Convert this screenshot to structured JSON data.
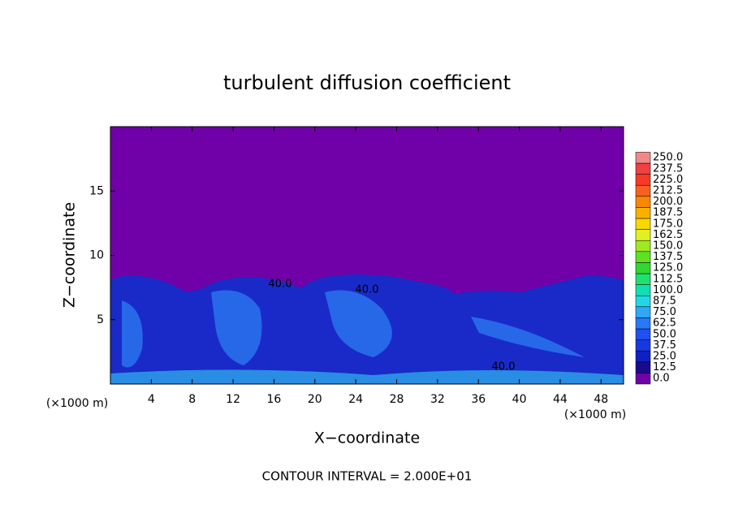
{
  "chart_data": {
    "type": "contour",
    "title": "turbulent diffusion coefficient",
    "x_label": "X−coordinate",
    "y_label": "Z−coordinate",
    "x_unit": "(×1000 m)",
    "footer": "CONTOUR INTERVAL = 2.000E+01",
    "contour_labels": [
      "40.0",
      "40.0",
      "40.0"
    ],
    "xlim": [
      0,
      50.2
    ],
    "xticks": [
      4,
      8,
      12,
      16,
      20,
      24,
      28,
      32,
      36,
      40,
      44,
      48
    ],
    "ylim": [
      0,
      20
    ],
    "yticks": [
      5,
      10,
      15
    ],
    "levels": [
      {
        "value": 0,
        "label": "0.0"
      },
      {
        "value": 12.5,
        "label": "12.5"
      },
      {
        "value": 25,
        "label": "25.0"
      },
      {
        "value": 37.5,
        "label": "37.5"
      },
      {
        "value": 50,
        "label": "50.0"
      },
      {
        "value": 62.5,
        "label": "62.5"
      },
      {
        "value": 75,
        "label": "75.0"
      },
      {
        "value": 87.5,
        "label": "87.5"
      },
      {
        "value": 100,
        "label": "100.0"
      },
      {
        "value": 112.5,
        "label": "112.5"
      },
      {
        "value": 125,
        "label": "125.0"
      },
      {
        "value": 137.5,
        "label": "137.5"
      },
      {
        "value": 150,
        "label": "150.0"
      },
      {
        "value": 162.5,
        "label": "162.5"
      },
      {
        "value": 175,
        "label": "175.0"
      },
      {
        "value": 187.5,
        "label": "187.5"
      },
      {
        "value": 200,
        "label": "200.0"
      },
      {
        "value": 212.5,
        "label": "212.5"
      },
      {
        "value": 225,
        "label": "225.0"
      },
      {
        "value": 237.5,
        "label": "237.5"
      },
      {
        "value": 250,
        "label": "250.0"
      }
    ],
    "level_colors": [
      "#7000a8",
      "#1a0a90",
      "#1020c0",
      "#1838e0",
      "#2050f0",
      "#2878f8",
      "#30a8f8",
      "#20d8e8",
      "#10e0b0",
      "#20e070",
      "#30d830",
      "#60e020",
      "#a0e820",
      "#e0f020",
      "#f8d800",
      "#f8b000",
      "#f88800",
      "#f86020",
      "#f83828",
      "#f04040",
      "#f08888"
    ]
  }
}
